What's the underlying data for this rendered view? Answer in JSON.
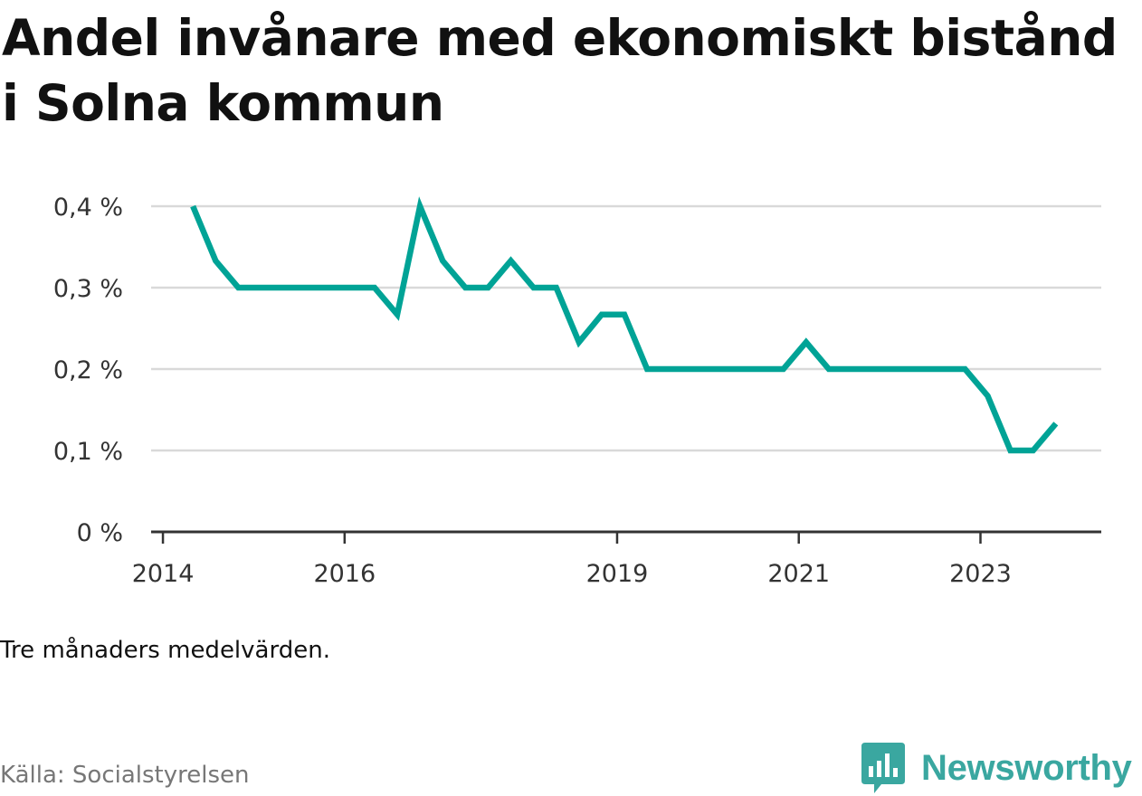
{
  "title": "Andel invånare med ekonomiskt bistånd i Solna kommun",
  "note": "Tre månaders medelvärden.",
  "source": "Källa: Socialstyrelsen",
  "brand": {
    "name": "Newsworthy",
    "color": "#3aa7a0"
  },
  "colors": {
    "line": "#00a396",
    "grid": "#d9d9d9",
    "axis": "#333333"
  },
  "chart_data": {
    "type": "line",
    "title": "Andel invånare med ekonomiskt bistånd i Solna kommun",
    "xlabel": "",
    "ylabel": "",
    "x_ticks": [
      {
        "label": "2014",
        "value": 2014.0
      },
      {
        "label": "2016",
        "value": 2016.0
      },
      {
        "label": "2019",
        "value": 2019.0
      },
      {
        "label": "2021",
        "value": 2021.0
      },
      {
        "label": "2023",
        "value": 2023.0
      }
    ],
    "y_ticks": [
      {
        "label": "0 %",
        "value": 0
      },
      {
        "label": "0,1 %",
        "value": 0.1
      },
      {
        "label": "0,2 %",
        "value": 0.2
      },
      {
        "label": "0,3 %",
        "value": 0.3
      },
      {
        "label": "0,4 %",
        "value": 0.4
      }
    ],
    "xlim": [
      2013.87,
      2024.33
    ],
    "ylim": [
      0,
      0.4
    ],
    "grid": true,
    "series": [
      {
        "x": [
          2014.33,
          2014.58,
          2014.83,
          2015.08,
          2015.33,
          2015.58,
          2015.83,
          2016.08,
          2016.33,
          2016.58,
          2016.83,
          2017.08,
          2017.33,
          2017.58,
          2017.83,
          2018.08,
          2018.33,
          2018.58,
          2018.83,
          2019.08,
          2019.33,
          2019.58,
          2019.83,
          2020.08,
          2020.33,
          2020.58,
          2020.83,
          2021.08,
          2021.33,
          2021.58,
          2021.83,
          2022.08,
          2022.33,
          2022.58,
          2022.83,
          2023.08,
          2023.33,
          2023.58,
          2023.83
        ],
        "values": [
          0.4,
          0.333,
          0.3,
          0.3,
          0.3,
          0.3,
          0.3,
          0.3,
          0.3,
          0.267,
          0.4,
          0.333,
          0.3,
          0.3,
          0.333,
          0.3,
          0.3,
          0.233,
          0.267,
          0.267,
          0.2,
          0.2,
          0.2,
          0.2,
          0.2,
          0.2,
          0.2,
          0.233,
          0.2,
          0.2,
          0.2,
          0.2,
          0.2,
          0.2,
          0.2,
          0.167,
          0.1,
          0.1,
          0.133
        ]
      }
    ]
  }
}
